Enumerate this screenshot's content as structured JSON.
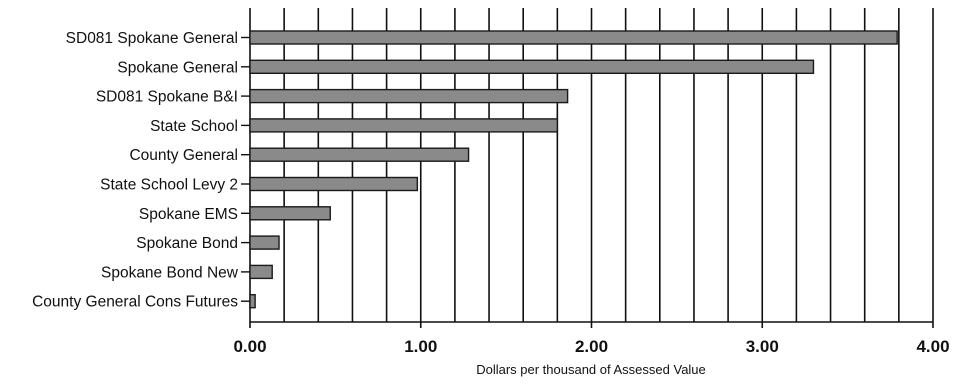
{
  "chart_data": {
    "type": "bar",
    "orientation": "horizontal",
    "title": "",
    "xlabel": "Dollars per thousand of Assessed Value",
    "ylabel": "",
    "xlim": [
      0,
      4
    ],
    "x_ticks": [
      0,
      0.2,
      0.4,
      0.6,
      0.8,
      1.0,
      1.2,
      1.4,
      1.6,
      1.8,
      2.0,
      2.2,
      2.4,
      2.6,
      2.8,
      3.0,
      3.2,
      3.4,
      3.6,
      3.8,
      4.0
    ],
    "x_tick_labels": [
      "0.00",
      "1.00",
      "2.00",
      "3.00",
      "4.00"
    ],
    "x_tick_label_values": [
      0,
      1,
      2,
      3,
      4
    ],
    "grid": "vertical",
    "legend": "none",
    "bar_color": "#8a8a8a",
    "bar_edge_color": "#1a1a1a",
    "categories": [
      "SD081 Spokane General",
      "Spokane General",
      "SD081 Spokane B&I",
      "State School",
      "County General",
      "State School Levy 2",
      "Spokane EMS",
      "Spokane Bond",
      "Spokane Bond New",
      "County General Cons Futures"
    ],
    "values": [
      3.79,
      3.3,
      1.86,
      1.8,
      1.28,
      0.98,
      0.47,
      0.17,
      0.13,
      0.03
    ]
  }
}
